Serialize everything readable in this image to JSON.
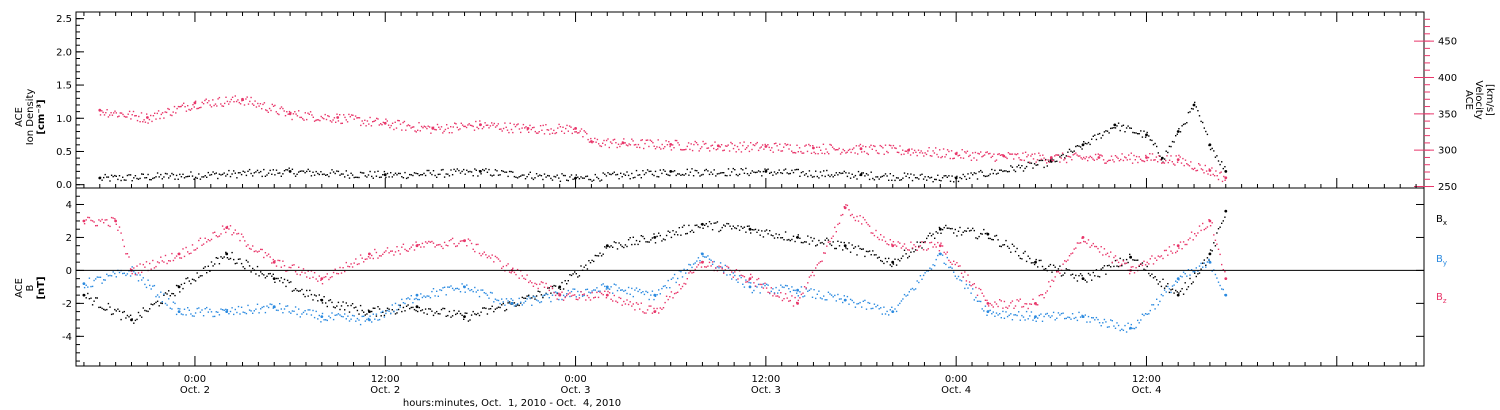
{
  "chart_data": [
    {
      "type": "scatter",
      "panel": "top",
      "ylabel_left": [
        "ACE",
        "Ion Density",
        "[cm⁻³]"
      ],
      "ylabel_right": [
        "ACE",
        "Velocity",
        "[km/s]"
      ],
      "ylim_left": [
        -0.05,
        2.6
      ],
      "ylim_right": [
        248,
        490
      ],
      "yticks_left": [
        "0.0",
        "0.5",
        "1.0",
        "1.5",
        "2.0",
        "2.5"
      ],
      "yticks_left_values": [
        0.0,
        0.5,
        1.0,
        1.5,
        2.0,
        2.5
      ],
      "yticks_right": [
        "250",
        "300",
        "350",
        "400",
        "450"
      ],
      "yticks_right_values": [
        250,
        300,
        350,
        400,
        450
      ],
      "grid": false,
      "series": [
        {
          "axis": "left",
          "color": "#000000",
          "x": [
            "2010-10-01 18:00",
            "2010-10-02 06:00",
            "2010-10-02 12:00",
            "2010-10-02 18:00",
            "2010-10-03 00:00",
            "2010-10-03 06:00",
            "2010-10-03 12:00",
            "2010-10-03 18:00",
            "2010-10-04 00:00",
            "2010-10-04 06:00",
            "2010-10-04 08:00",
            "2010-10-04 10:00",
            "2010-10-04 12:00",
            "2010-10-04 13:00",
            "2010-10-04 14:00",
            "2010-10-04 15:00",
            "2010-10-04 16:00",
            "2010-10-04 17:00"
          ],
          "y": [
            0.1,
            0.2,
            0.15,
            0.2,
            0.1,
            0.2,
            0.2,
            0.15,
            0.1,
            0.35,
            0.6,
            0.9,
            0.75,
            0.4,
            0.8,
            1.2,
            0.6,
            0.2
          ]
        },
        {
          "axis": "right",
          "color": "#e8366a",
          "x": [
            "2010-10-01 18:00",
            "2010-10-01 21:00",
            "2010-10-02 00:00",
            "2010-10-02 03:00",
            "2010-10-02 06:00",
            "2010-10-02 09:00",
            "2010-10-02 12:00",
            "2010-10-02 15:00",
            "2010-10-02 18:00",
            "2010-10-02 21:00",
            "2010-10-03 00:00",
            "2010-10-03 01:00",
            "2010-10-03 03:00",
            "2010-10-03 06:00",
            "2010-10-03 09:00",
            "2010-10-03 12:00",
            "2010-10-03 15:00",
            "2010-10-03 18:00",
            "2010-10-03 21:00",
            "2010-10-04 00:00",
            "2010-10-04 03:00",
            "2010-10-04 06:00",
            "2010-10-04 09:00",
            "2010-10-04 12:00",
            "2010-10-04 14:00",
            "2010-10-04 16:00",
            "2010-10-04 17:00"
          ],
          "y": [
            355,
            345,
            365,
            370,
            350,
            345,
            337,
            330,
            335,
            330,
            330,
            312,
            310,
            308,
            306,
            305,
            303,
            302,
            300,
            295,
            292,
            290,
            290,
            290,
            287,
            272,
            262
          ]
        }
      ]
    },
    {
      "type": "scatter",
      "panel": "bottom",
      "ylabel_left": [
        "ACE",
        "B",
        "[nT]"
      ],
      "ylim": [
        -5.8,
        5.0
      ],
      "yticks": [
        "-4",
        "-2",
        "0",
        "2",
        "4"
      ],
      "yticks_values": [
        -4,
        -2,
        0,
        2,
        4
      ],
      "zero_line": true,
      "grid": false,
      "legend": "right",
      "series": [
        {
          "name_main": "B",
          "name_sub": "x",
          "color": "#000000",
          "x": [
            "2010-10-01 17:00",
            "2010-10-01 20:00",
            "2010-10-01 23:00",
            "2010-10-02 02:00",
            "2010-10-02 05:00",
            "2010-10-02 08:00",
            "2010-10-02 11:00",
            "2010-10-02 14:00",
            "2010-10-02 17:00",
            "2010-10-02 20:00",
            "2010-10-02 23:00",
            "2010-10-03 02:00",
            "2010-10-03 05:00",
            "2010-10-03 08:00",
            "2010-10-03 11:00",
            "2010-10-03 14:00",
            "2010-10-03 17:00",
            "2010-10-03 20:00",
            "2010-10-03 23:00",
            "2010-10-04 02:00",
            "2010-10-04 05:00",
            "2010-10-04 08:00",
            "2010-10-04 11:00",
            "2010-10-04 14:00",
            "2010-10-04 16:00",
            "2010-10-04 17:00"
          ],
          "y": [
            -1.5,
            -3.0,
            -1.0,
            1.0,
            -0.5,
            -1.8,
            -2.5,
            -2.2,
            -2.8,
            -2.0,
            -1.0,
            1.5,
            2.0,
            2.8,
            2.5,
            2.0,
            1.5,
            0.5,
            2.5,
            2.2,
            0.5,
            -0.5,
            0.8,
            -1.5,
            1.0,
            3.6
          ]
        },
        {
          "name_main": "B",
          "name_sub": "y",
          "color": "#2b8ae0",
          "x": [
            "2010-10-01 17:00",
            "2010-10-01 20:00",
            "2010-10-01 23:00",
            "2010-10-02 02:00",
            "2010-10-02 05:00",
            "2010-10-02 08:00",
            "2010-10-02 11:00",
            "2010-10-02 14:00",
            "2010-10-02 17:00",
            "2010-10-02 20:00",
            "2010-10-02 23:00",
            "2010-10-03 02:00",
            "2010-10-03 05:00",
            "2010-10-03 08:00",
            "2010-10-03 11:00",
            "2010-10-03 14:00",
            "2010-10-03 17:00",
            "2010-10-03 20:00",
            "2010-10-03 23:00",
            "2010-10-04 02:00",
            "2010-10-04 05:00",
            "2010-10-04 08:00",
            "2010-10-04 11:00",
            "2010-10-04 14:00",
            "2010-10-04 16:00",
            "2010-10-04 17:00"
          ],
          "y": [
            -0.8,
            0.0,
            -2.5,
            -2.5,
            -2.2,
            -2.8,
            -3.0,
            -1.5,
            -1.0,
            -2.0,
            -1.5,
            -1.0,
            -1.5,
            1.0,
            -1.0,
            -1.2,
            -1.8,
            -2.5,
            1.0,
            -2.5,
            -2.8,
            -2.8,
            -3.5,
            -0.5,
            0.5,
            -1.5
          ]
        },
        {
          "name_main": "B",
          "name_sub": "z",
          "color": "#e8366a",
          "x": [
            "2010-10-01 17:00",
            "2010-10-01 19:00",
            "2010-10-01 20:00",
            "2010-10-01 23:00",
            "2010-10-02 02:00",
            "2010-10-02 05:00",
            "2010-10-02 08:00",
            "2010-10-02 11:00",
            "2010-10-02 14:00",
            "2010-10-02 17:00",
            "2010-10-02 20:00",
            "2010-10-02 23:00",
            "2010-10-03 02:00",
            "2010-10-03 05:00",
            "2010-10-03 08:00",
            "2010-10-03 11:00",
            "2010-10-03 14:00",
            "2010-10-03 17:00",
            "2010-10-03 20:00",
            "2010-10-03 23:00",
            "2010-10-04 02:00",
            "2010-10-04 05:00",
            "2010-10-04 08:00",
            "2010-10-04 11:00",
            "2010-10-04 14:00",
            "2010-10-04 16:00",
            "2010-10-04 17:00"
          ],
          "y": [
            3.0,
            3.0,
            0.0,
            1.0,
            2.6,
            0.5,
            -0.5,
            1.0,
            1.5,
            1.8,
            0.0,
            -1.5,
            -1.5,
            -2.5,
            0.5,
            -0.5,
            -2.0,
            3.8,
            1.5,
            1.5,
            -2.0,
            -2.0,
            2.0,
            0.0,
            1.5,
            3.0,
            -0.5
          ]
        }
      ]
    }
  ],
  "x_axis": {
    "range": [
      "2010-10-01 16:30",
      "2010-10-05 05:30"
    ],
    "major_ticks": [
      {
        "t": "2010-10-02 00:00",
        "label_time": "0:00",
        "label_date": "Oct. 2"
      },
      {
        "t": "2010-10-02 12:00",
        "label_time": "12:00",
        "label_date": "Oct. 2"
      },
      {
        "t": "2010-10-03 00:00",
        "label_time": "0:00",
        "label_date": "Oct. 3"
      },
      {
        "t": "2010-10-03 12:00",
        "label_time": "12:00",
        "label_date": "Oct. 3"
      },
      {
        "t": "2010-10-04 00:00",
        "label_time": "0:00",
        "label_date": "Oct. 4"
      },
      {
        "t": "2010-10-04 12:00",
        "label_time": "12:00",
        "label_date": "Oct. 4"
      }
    ],
    "xlabel": "hours:minutes, Oct.  1, 2010 - Oct.  4, 2010"
  },
  "colors": {
    "density": "#000000",
    "velocity": "#e8366a",
    "bx": "#000000",
    "by": "#2b8ae0",
    "bz": "#e8366a"
  }
}
